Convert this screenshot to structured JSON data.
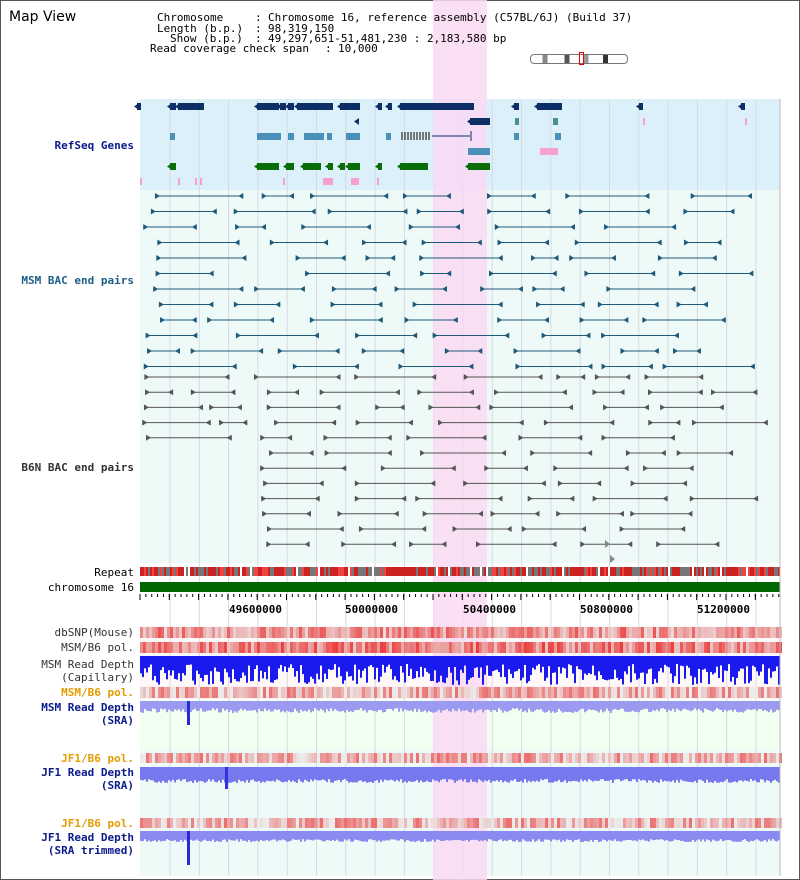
{
  "view": {
    "title": "Map View"
  },
  "info": {
    "chromosome_label": "Chromosome",
    "chromosome_value": "Chromosome 16, reference assembly (C57BL/6J) (Build 37)",
    "length_label": "Length (b.p.)",
    "length_value": "98,319,150",
    "show_label": "Show (b.p.)",
    "show_value": "49,297,651-51,481,230 : 2,183,580 bp",
    "coverage_label": "Read coverage check span",
    "coverage_value": "10,000"
  },
  "tracks": {
    "refseq": "RefSeq Genes",
    "msm_bac": "MSM BAC end pairs",
    "b6n_bac": "B6N BAC end pairs",
    "repeat": "Repeat",
    "chromosome": "chromosome 16",
    "dbsnp": "dbSNP(Mouse)",
    "msm_b6_pol": "MSM/B6 pol.",
    "msm_depth_cap_1": "MSM Read Depth",
    "msm_depth_cap_2": "(Capillary)",
    "msm_b6_pol_sra": "MSM/B6 pol.",
    "msm_depth_sra_1": "MSM Read Depth",
    "msm_depth_sra_2": "(SRA)",
    "jf1_b6_pol": "JF1/B6 pol.",
    "jf1_depth_sra_1": "JF1 Read Depth",
    "jf1_depth_sra_2": "(SRA)",
    "jf1_b6_pol_trim": "JF1/B6 pol.",
    "jf1_depth_trim_1": "JF1 Read Depth",
    "jf1_depth_trim_2": "(SRA trimmed)"
  },
  "axis": {
    "ticks": [
      "49600000",
      "50000000",
      "50400000",
      "50800000",
      "51200000"
    ]
  },
  "colors": {
    "refseq_bg": "#dcf0fa",
    "bac_bg": "#eefaf8",
    "highlight": "#f9d9f3",
    "chromosome": "#006600",
    "refseq_dark": "#0d2f66",
    "refseq_mid": "#4a90b8",
    "refseq_green": "#0a6d0a",
    "refseq_pink": "#f7a1cf",
    "msm_line": "#1f5a7a",
    "b6n_line": "#555555",
    "depth_blue": "#1a1aee",
    "depth_light": "#8888ee"
  }
}
